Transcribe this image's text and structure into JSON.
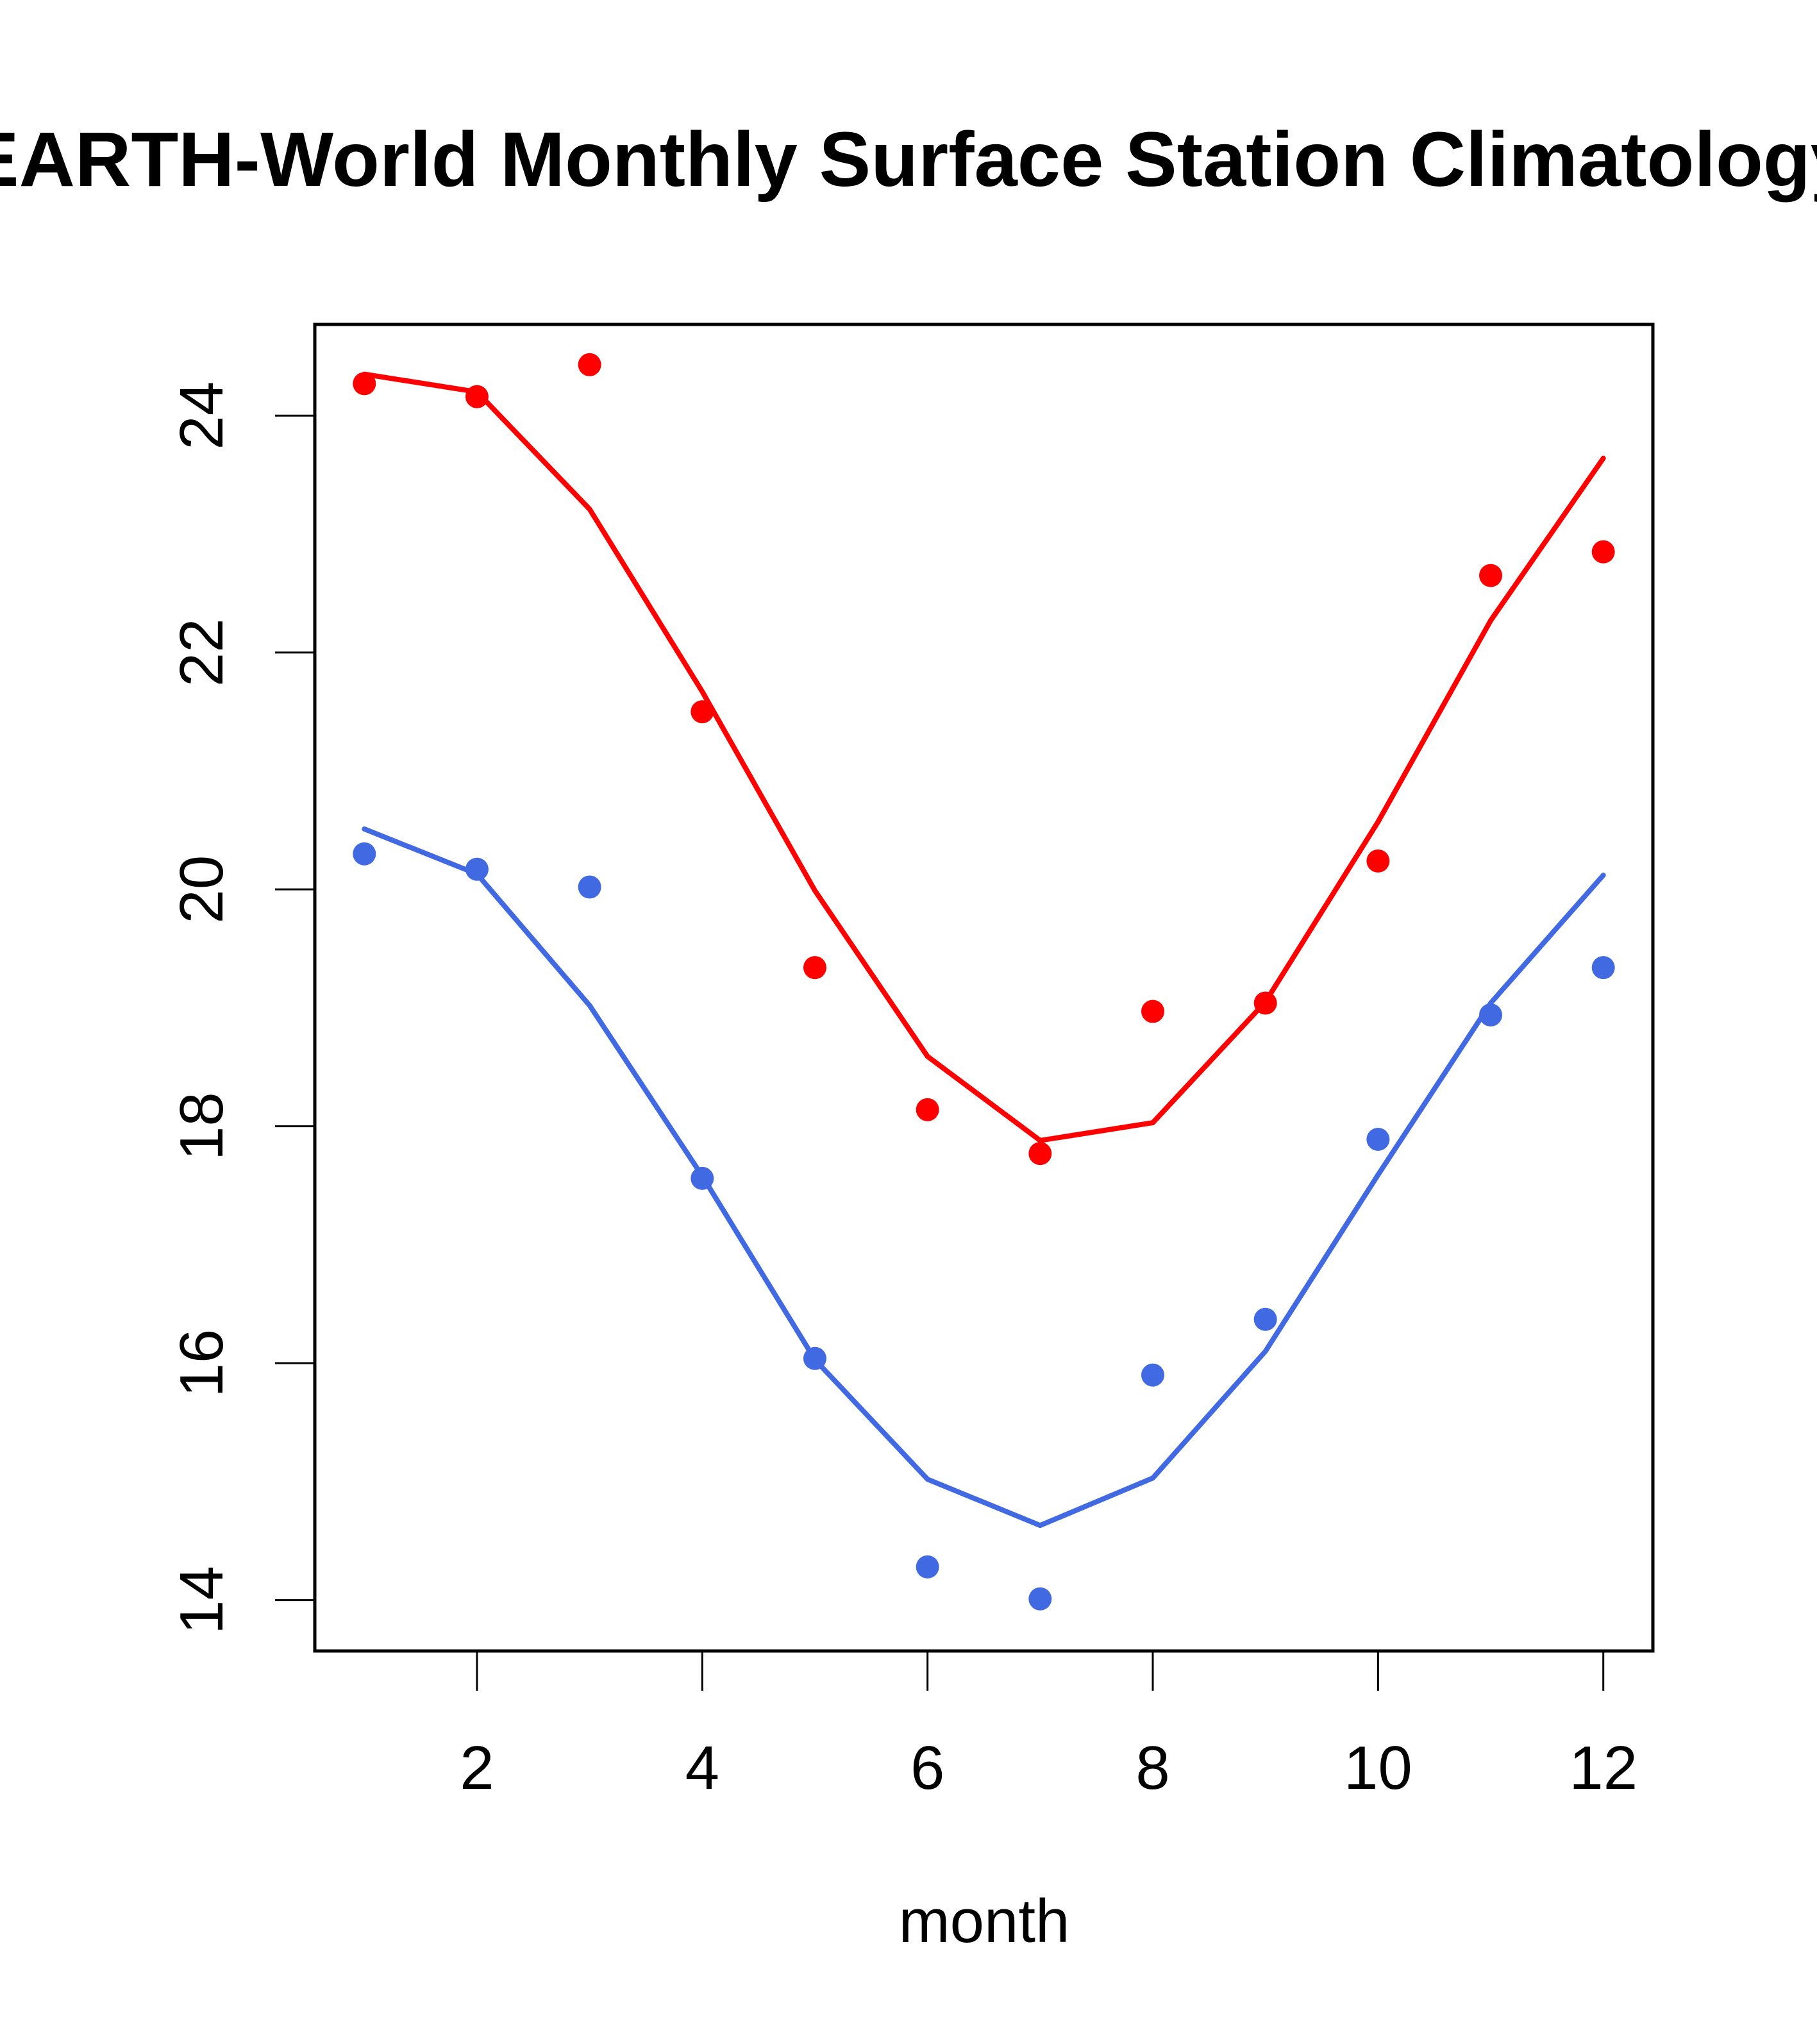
{
  "chart_data": {
    "type": "line",
    "title": "EARTH-World Monthly Surface Station Climatology",
    "xlabel": "month",
    "ylabel": "",
    "xlim": [
      0.56,
      12.44
    ],
    "ylim": [
      13.57,
      24.77
    ],
    "x_ticks": [
      2,
      4,
      6,
      8,
      10,
      12
    ],
    "y_ticks": [
      14,
      16,
      18,
      20,
      22,
      24
    ],
    "grid": false,
    "legend": "none",
    "x": [
      1,
      2,
      3,
      4,
      5,
      6,
      7,
      8,
      9,
      10,
      11,
      12
    ],
    "series": [
      {
        "name": "red-points",
        "kind": "points",
        "color": "#FF0000",
        "values": [
          24.27,
          24.16,
          24.43,
          21.5,
          19.34,
          18.14,
          17.77,
          18.97,
          19.04,
          20.24,
          22.65,
          22.85
        ]
      },
      {
        "name": "red-line",
        "kind": "line",
        "color": "#FF0000",
        "values": [
          24.35,
          24.2,
          23.21,
          21.67,
          19.99,
          18.59,
          17.88,
          18.03,
          19.05,
          20.57,
          22.27,
          23.64
        ]
      },
      {
        "name": "blue-points",
        "kind": "points",
        "color": "#4169E1",
        "values": [
          20.3,
          20.17,
          20.02,
          17.56,
          16.04,
          14.28,
          14.01,
          15.9,
          16.37,
          17.89,
          18.94,
          19.34
        ]
      },
      {
        "name": "blue-line",
        "kind": "line",
        "color": "#4169E1",
        "values": [
          20.51,
          20.13,
          19.02,
          17.58,
          16.03,
          15.02,
          14.63,
          15.03,
          16.1,
          17.59,
          19.04,
          20.12
        ]
      }
    ]
  }
}
